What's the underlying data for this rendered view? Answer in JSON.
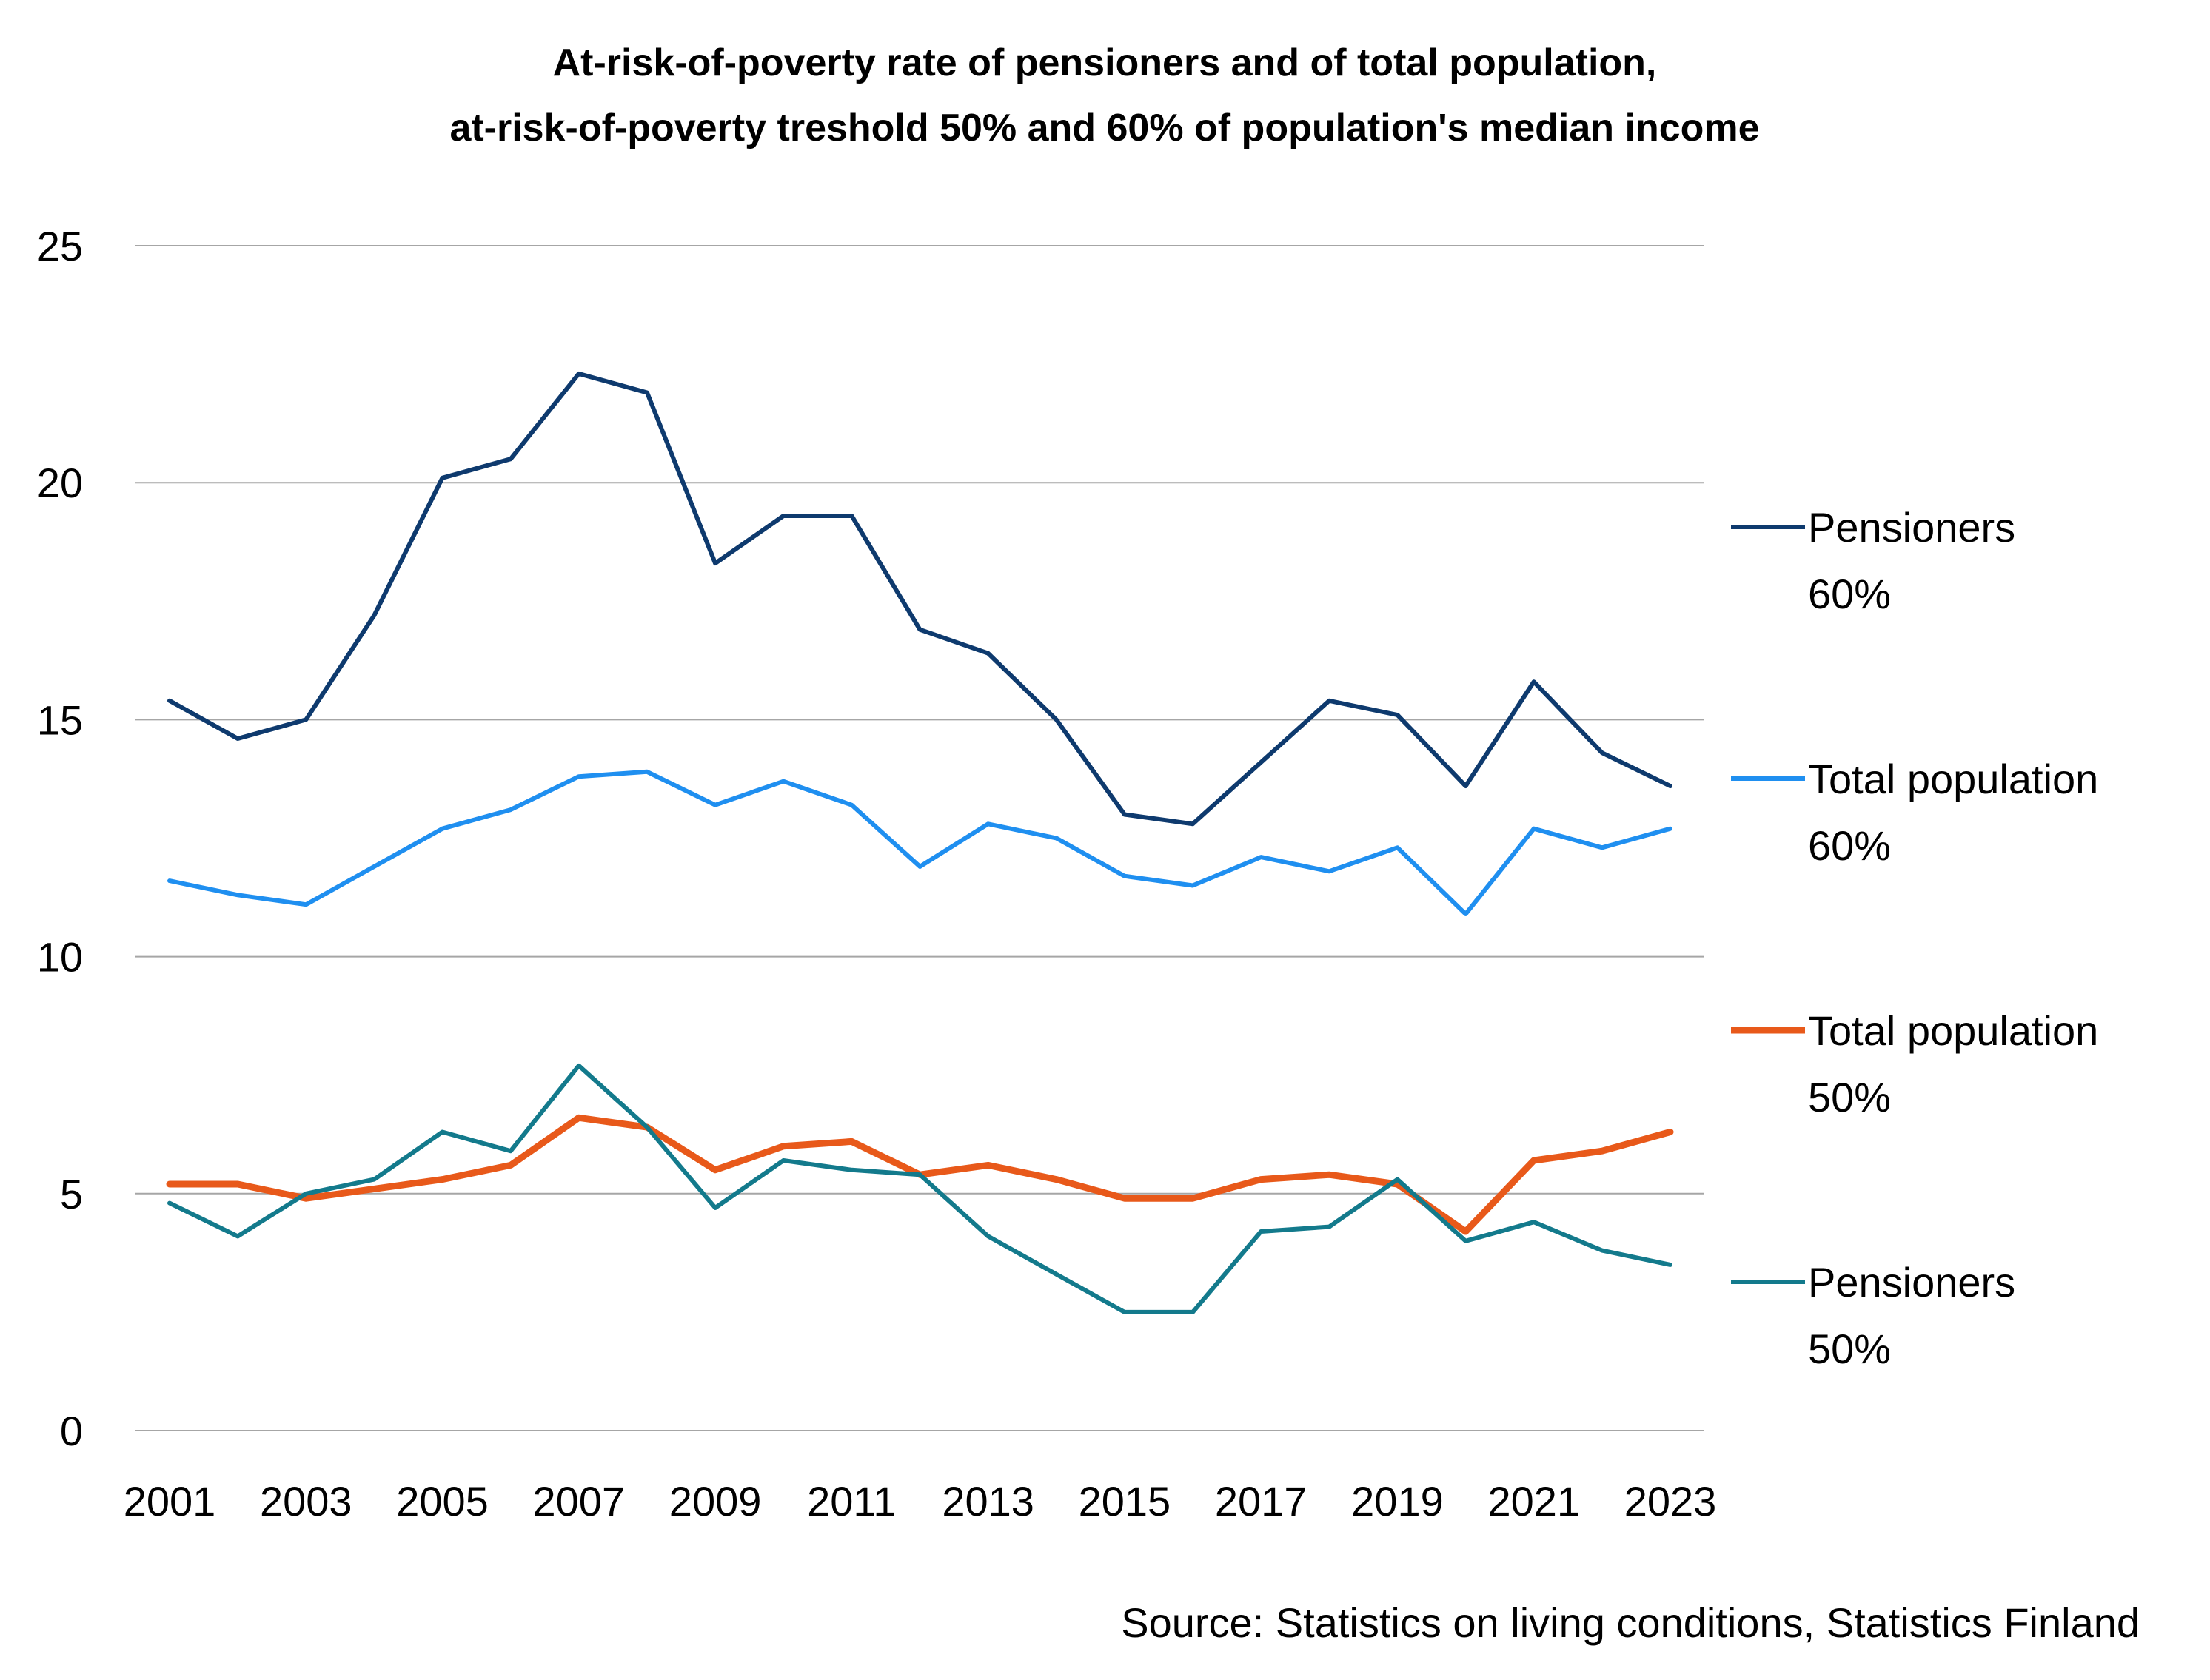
{
  "chart_data": {
    "type": "line",
    "title_lines": [
      "At-risk-of-poverty rate of pensioners and of total population,",
      "at-risk-of-poverty treshold 50% and 60% of population's median income"
    ],
    "source": "Source: Statistics on living conditions, Statistics Finland",
    "xlabel": "",
    "ylabel": "",
    "ylim": [
      0,
      25
    ],
    "yticks": [
      "0",
      "5",
      "10",
      "15",
      "20",
      "25"
    ],
    "x": [
      2001,
      2002,
      2003,
      2004,
      2005,
      2006,
      2007,
      2008,
      2009,
      2010,
      2011,
      2012,
      2013,
      2014,
      2015,
      2016,
      2017,
      2018,
      2019,
      2020,
      2021,
      2022,
      2023
    ],
    "xtick_labels": [
      "2001",
      "2003",
      "2005",
      "2007",
      "2009",
      "2011",
      "2013",
      "2015",
      "2017",
      "2019",
      "2021",
      "2023"
    ],
    "grid": "horizontal",
    "legend_position": "right",
    "series": [
      {
        "legend_line1": "Pensioners",
        "legend_line2": "60%",
        "color": "#0e3a6e",
        "values": [
          15.4,
          14.6,
          15.0,
          17.2,
          20.1,
          20.5,
          22.3,
          21.9,
          18.3,
          19.3,
          19.3,
          16.9,
          16.4,
          15.0,
          13.0,
          12.8,
          14.1,
          15.4,
          15.1,
          13.6,
          15.8,
          14.3,
          13.6
        ]
      },
      {
        "legend_line1": "Total population",
        "legend_line2": "60%",
        "color": "#1f8ff0",
        "values": [
          11.6,
          11.3,
          11.1,
          11.9,
          12.7,
          13.1,
          13.8,
          13.9,
          13.2,
          13.7,
          13.2,
          11.9,
          12.8,
          12.5,
          11.7,
          11.5,
          12.1,
          11.8,
          12.3,
          10.9,
          12.7,
          12.3,
          12.7
        ]
      },
      {
        "legend_line1": "Total population",
        "legend_line2": "50%",
        "color": "#e8591a",
        "values": [
          5.2,
          5.2,
          4.9,
          5.1,
          5.3,
          5.6,
          6.6,
          6.4,
          5.5,
          6.0,
          6.1,
          5.4,
          5.6,
          5.3,
          4.9,
          4.9,
          5.3,
          5.4,
          5.2,
          4.2,
          5.7,
          5.9,
          6.3
        ]
      },
      {
        "legend_line1": "Pensioners",
        "legend_line2": "50%",
        "color": "#137a8c",
        "values": [
          4.8,
          4.1,
          5.0,
          5.3,
          6.3,
          5.9,
          7.7,
          6.4,
          4.7,
          5.7,
          5.5,
          5.4,
          4.1,
          3.3,
          2.5,
          2.5,
          4.2,
          4.3,
          5.3,
          4.0,
          4.4,
          3.8,
          3.5
        ]
      }
    ]
  }
}
